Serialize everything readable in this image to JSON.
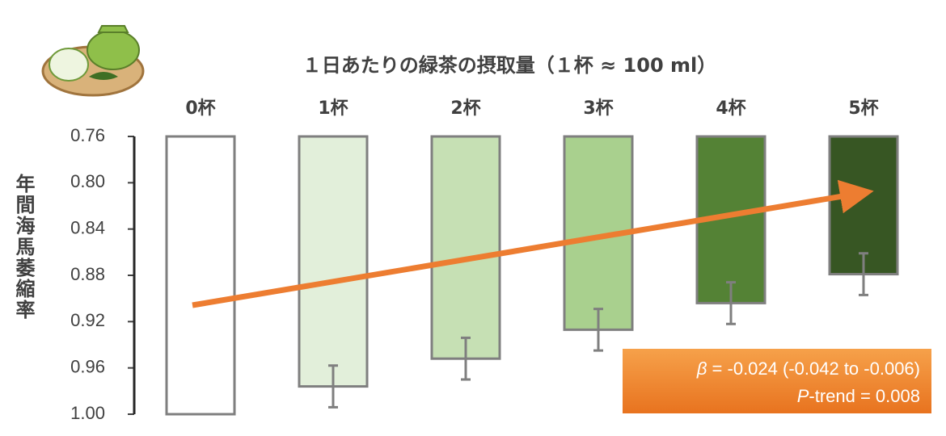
{
  "chart_data": {
    "type": "bar",
    "title": "１日あたりの緑茶の摂取量（１杯 ≈ 100 ml）",
    "y_label": "年間海馬萎縮率",
    "categories": [
      "0杯",
      "1杯",
      "2杯",
      "3杯",
      "4杯",
      "5杯"
    ],
    "values": [
      1.0,
      0.976,
      0.952,
      0.927,
      0.904,
      0.879
    ],
    "errors": [
      null,
      0.018,
      0.018,
      0.018,
      0.018,
      0.018
    ],
    "colors": [
      "#ffffff",
      "#e2efda",
      "#c6e0b4",
      "#a9d08e",
      "#548235",
      "#375623"
    ],
    "ylim": [
      0.76,
      1.0
    ],
    "y_inverted": true,
    "yticks": [
      0.76,
      {
        "value": 0.8,
        "label": "0.80"
      },
      0.84,
      0.88,
      0.92,
      0.96,
      {
        "value": 1,
        "label": "1.00"
      }
    ],
    "annotation": {
      "symbol": "β",
      "line1": " = -0.024 (-0.042 to -0.006)",
      "p_symbol": "P",
      "line2": "-trend = 0.008"
    }
  }
}
